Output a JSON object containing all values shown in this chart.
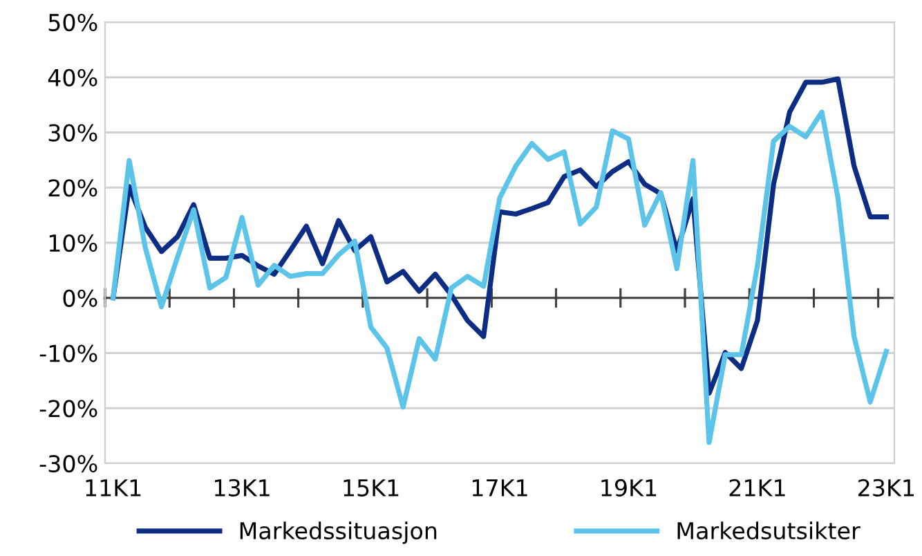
{
  "chart_data": {
    "type": "line",
    "categories": [
      "11K1",
      null,
      null,
      null,
      null,
      null,
      null,
      null,
      "13K1",
      null,
      null,
      null,
      null,
      null,
      null,
      null,
      "15K1",
      null,
      null,
      null,
      null,
      null,
      null,
      null,
      "17K1",
      null,
      null,
      null,
      null,
      null,
      null,
      null,
      "19K1",
      null,
      null,
      null,
      null,
      null,
      null,
      null,
      "21K1",
      null,
      null,
      null,
      null,
      null,
      null,
      null,
      "23K1"
    ],
    "series": [
      {
        "name": "Markedssituasjon",
        "color": "#0c2d83",
        "values": [
          0,
          20.2,
          12.8,
          8.4,
          11.1,
          16.9,
          7.2,
          7.2,
          7.7,
          5.8,
          4.3,
          8.6,
          13.0,
          6.2,
          14.0,
          8.6,
          11.1,
          2.9,
          4.8,
          1.2,
          4.3,
          0.5,
          -4.1,
          -7.0,
          15.6,
          15.2,
          16.2,
          17.3,
          22.0,
          23.2,
          20.2,
          22.9,
          24.7,
          20.6,
          18.9,
          8.5,
          18.0,
          -17.3,
          -9.9,
          -12.8,
          -4.1,
          20.6,
          33.7,
          39.1,
          39.1,
          39.7,
          23.9,
          14.7,
          14.7
        ]
      },
      {
        "name": "Markedsutsikter",
        "color": "#5bc4e8",
        "values": [
          0,
          24.9,
          9.1,
          -1.6,
          7.4,
          16.0,
          1.8,
          3.7,
          14.6,
          2.3,
          5.9,
          3.9,
          4.4,
          4.4,
          7.8,
          10.3,
          -5.3,
          -9.1,
          -19.8,
          -7.4,
          -11.1,
          1.8,
          3.9,
          2.1,
          18.1,
          23.9,
          28.0,
          25.1,
          26.5,
          13.4,
          16.5,
          30.3,
          28.8,
          13.2,
          19.1,
          5.3,
          24.9,
          -26.2,
          -10.3,
          -10.3,
          5.8,
          28.4,
          31.1,
          29.2,
          33.7,
          18.1,
          -7.0,
          -18.9,
          -9.7
        ]
      }
    ],
    "ylim": [
      -30,
      50
    ],
    "yticks": [
      {
        "value": -30,
        "label": "-30%"
      },
      {
        "value": -20,
        "label": "-20%"
      },
      {
        "value": -10,
        "label": "-10%"
      },
      {
        "value": 0,
        "label": "0%"
      },
      {
        "value": 10,
        "label": "10%"
      },
      {
        "value": 20,
        "label": "20%"
      },
      {
        "value": 30,
        "label": "30%"
      },
      {
        "value": 40,
        "label": "40%"
      },
      {
        "value": 50,
        "label": "50%"
      }
    ],
    "grid": "y",
    "legend": "bottom",
    "marker": "none",
    "line_style": "solid"
  }
}
